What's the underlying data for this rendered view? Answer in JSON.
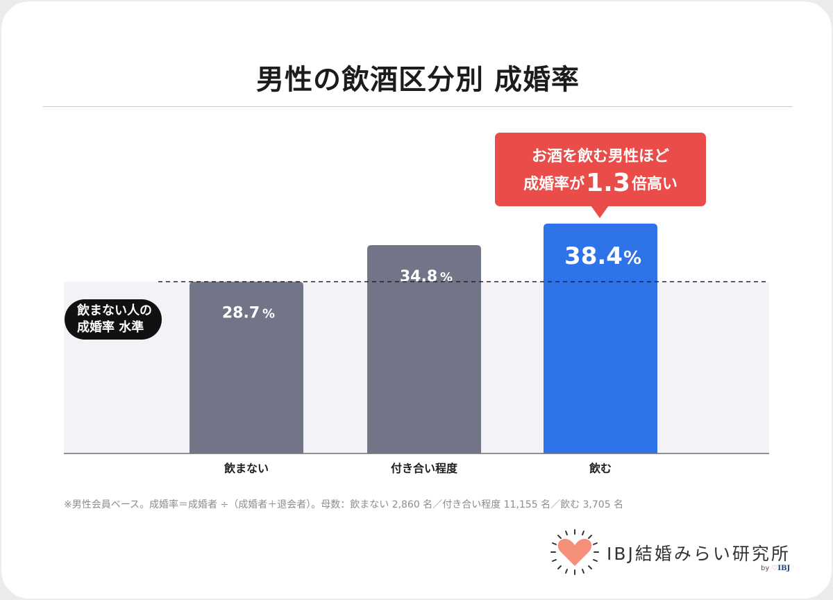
{
  "chart_data": {
    "type": "bar",
    "title": "男性の飲酒区分別 成婚率",
    "categories": [
      "飲まない",
      "付き合い程度",
      "飲む"
    ],
    "values": [
      28.7,
      34.8,
      38.4
    ],
    "value_labels": [
      "28.7",
      "34.8",
      "38.4"
    ],
    "unit": "%",
    "bar_colors": [
      "#727487",
      "#727487",
      "#2e73e8"
    ],
    "ylim": [
      0,
      42
    ],
    "reference_line": {
      "value": 28.7,
      "label_line1": "飲まない人の",
      "label_line2": "成婚率 水準"
    },
    "callout": {
      "line1": "お酒を飲む男性ほど",
      "line2_pre": "成婚率が",
      "line2_big": "1.3",
      "line2_post": "倍高い"
    },
    "footnote": "※男性会員ベース。成婚率＝成婚者 ÷（成婚者＋退会者）。母数：飲まない 2,860 名／付き合い程度 11,155 名／飲む 3,705 名"
  },
  "logo": {
    "text": "IBJ結婚みらい研究所",
    "by": "by",
    "brand": "IBJ",
    "heart_color": "#f4907a"
  }
}
